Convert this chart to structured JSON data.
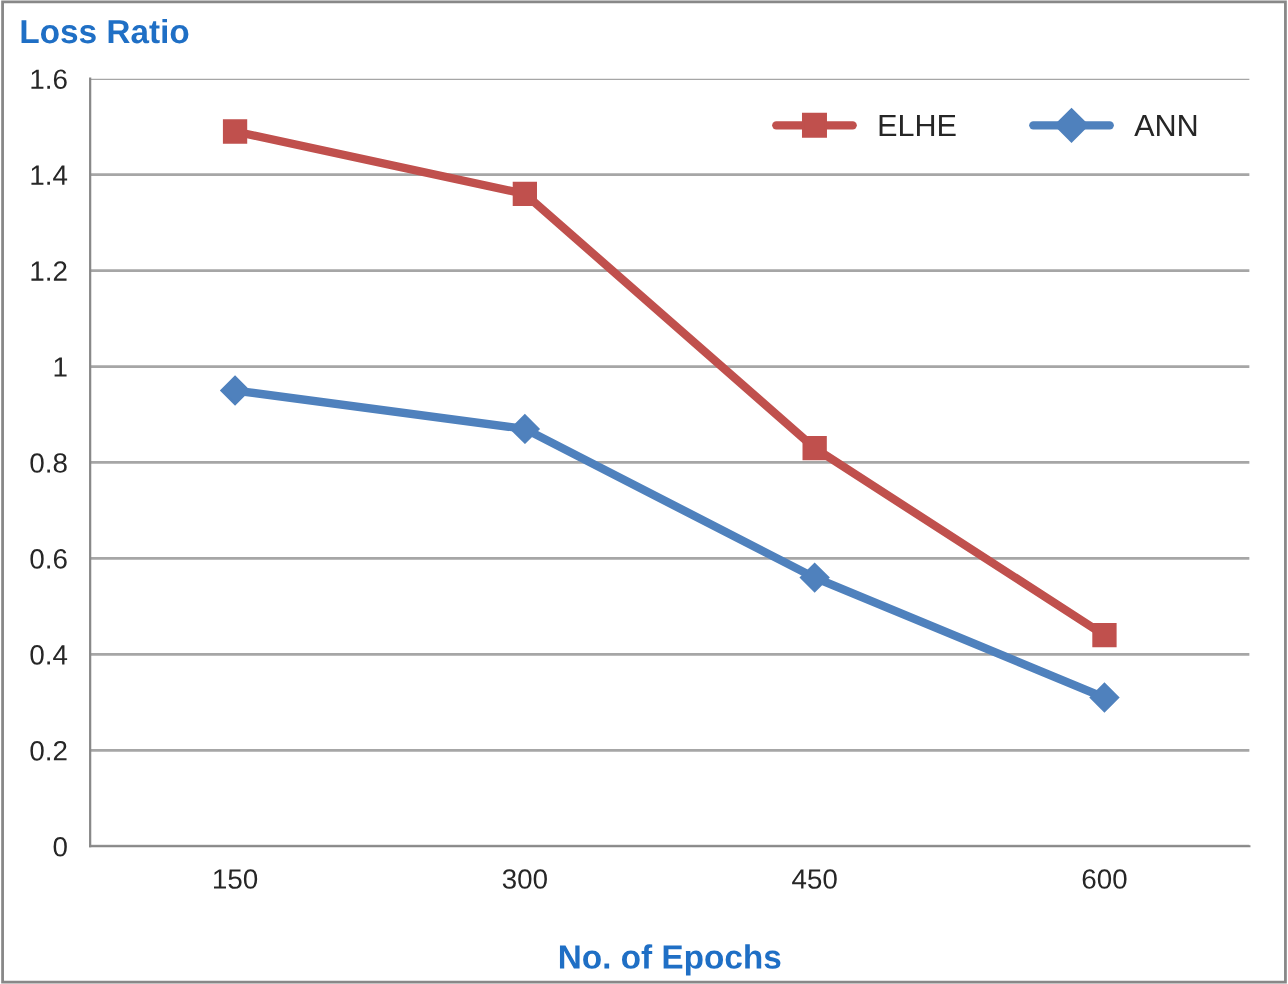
{
  "chart_data": {
    "type": "line",
    "ylabel": "Loss Ratio",
    "xlabel": "No. of Epochs",
    "categories": [
      "150",
      "300",
      "450",
      "600"
    ],
    "series": [
      {
        "name": "ELHE",
        "color": "#c0504d",
        "marker": "square",
        "values": [
          1.49,
          1.36,
          0.83,
          0.44
        ]
      },
      {
        "name": "ANN",
        "color": "#4f81bd",
        "marker": "diamond",
        "values": [
          0.95,
          0.87,
          0.56,
          0.31
        ]
      }
    ],
    "ylim": [
      0,
      1.6
    ],
    "yticks": [
      0,
      0.2,
      0.4,
      0.6,
      0.8,
      1,
      1.2,
      1.4,
      1.6
    ],
    "grid": "y",
    "legend": "top right"
  }
}
